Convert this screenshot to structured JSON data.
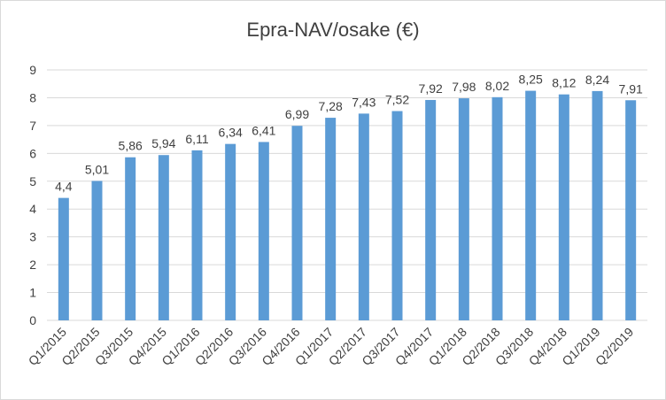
{
  "chart_data": {
    "type": "bar",
    "title": "Epra-NAV/osake (€)",
    "xlabel": "",
    "ylabel": "",
    "categories": [
      "Q1/2015",
      "Q2/2015",
      "Q3/2015",
      "Q4/2015",
      "Q1/2016",
      "Q2/2016",
      "Q3/2016",
      "Q4/2016",
      "Q1/2017",
      "Q2/2017",
      "Q3/2017",
      "Q4/2017",
      "Q1/2018",
      "Q2/2018",
      "Q3/2018",
      "Q4/2018",
      "Q1/2019",
      "Q2/2019"
    ],
    "values": [
      4.4,
      5.01,
      5.86,
      5.94,
      6.11,
      6.34,
      6.41,
      6.99,
      7.28,
      7.43,
      7.52,
      7.92,
      7.98,
      8.02,
      8.25,
      8.12,
      8.24,
      7.91
    ],
    "value_labels": [
      "4,4",
      "5,01",
      "5,86",
      "5,94",
      "6,11",
      "6,34",
      "6,41",
      "6,99",
      "7,28",
      "7,43",
      "7,52",
      "7,92",
      "7,98",
      "8,02",
      "8,25",
      "8,12",
      "8,24",
      "7,91"
    ],
    "y_ticks": [
      "0",
      "1",
      "2",
      "3",
      "4",
      "5",
      "6",
      "7",
      "8",
      "9"
    ],
    "ylim": [
      0,
      9
    ],
    "grid": true,
    "legend": "none",
    "colors": {
      "bar": "#5b9bd5",
      "grid": "#d9d9d9",
      "text": "#404040"
    }
  }
}
